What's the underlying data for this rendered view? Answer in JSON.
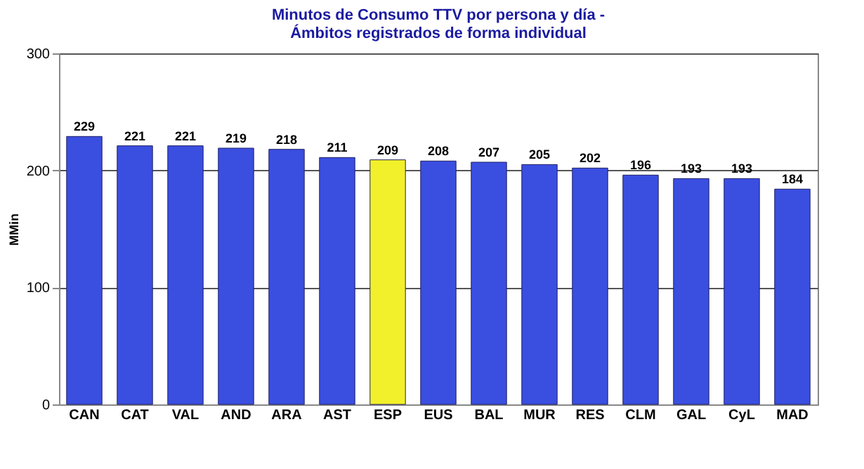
{
  "chart_data": {
    "type": "bar",
    "title": [
      "Minutos de Consumo TTV por persona y día -",
      "Ámbitos registrados de forma individual"
    ],
    "ylabel": "MMin",
    "categories": [
      "CAN",
      "CAT",
      "VAL",
      "AND",
      "ARA",
      "AST",
      "ESP",
      "EUS",
      "BAL",
      "MUR",
      "RES",
      "CLM",
      "GAL",
      "CyL",
      "MAD"
    ],
    "values": [
      229,
      221,
      221,
      219,
      218,
      211,
      209,
      208,
      207,
      205,
      202,
      196,
      193,
      193,
      184
    ],
    "colors": [
      "#3a4ee0",
      "#3a4ee0",
      "#3a4ee0",
      "#3a4ee0",
      "#3a4ee0",
      "#3a4ee0",
      "#f2f02a",
      "#3a4ee0",
      "#3a4ee0",
      "#3a4ee0",
      "#3a4ee0",
      "#3a4ee0",
      "#3a4ee0",
      "#3a4ee0",
      "#3a4ee0"
    ],
    "ylim": [
      0,
      300
    ],
    "yticks": [
      0,
      100,
      200,
      300
    ],
    "grid": "y",
    "data_labels": true
  }
}
